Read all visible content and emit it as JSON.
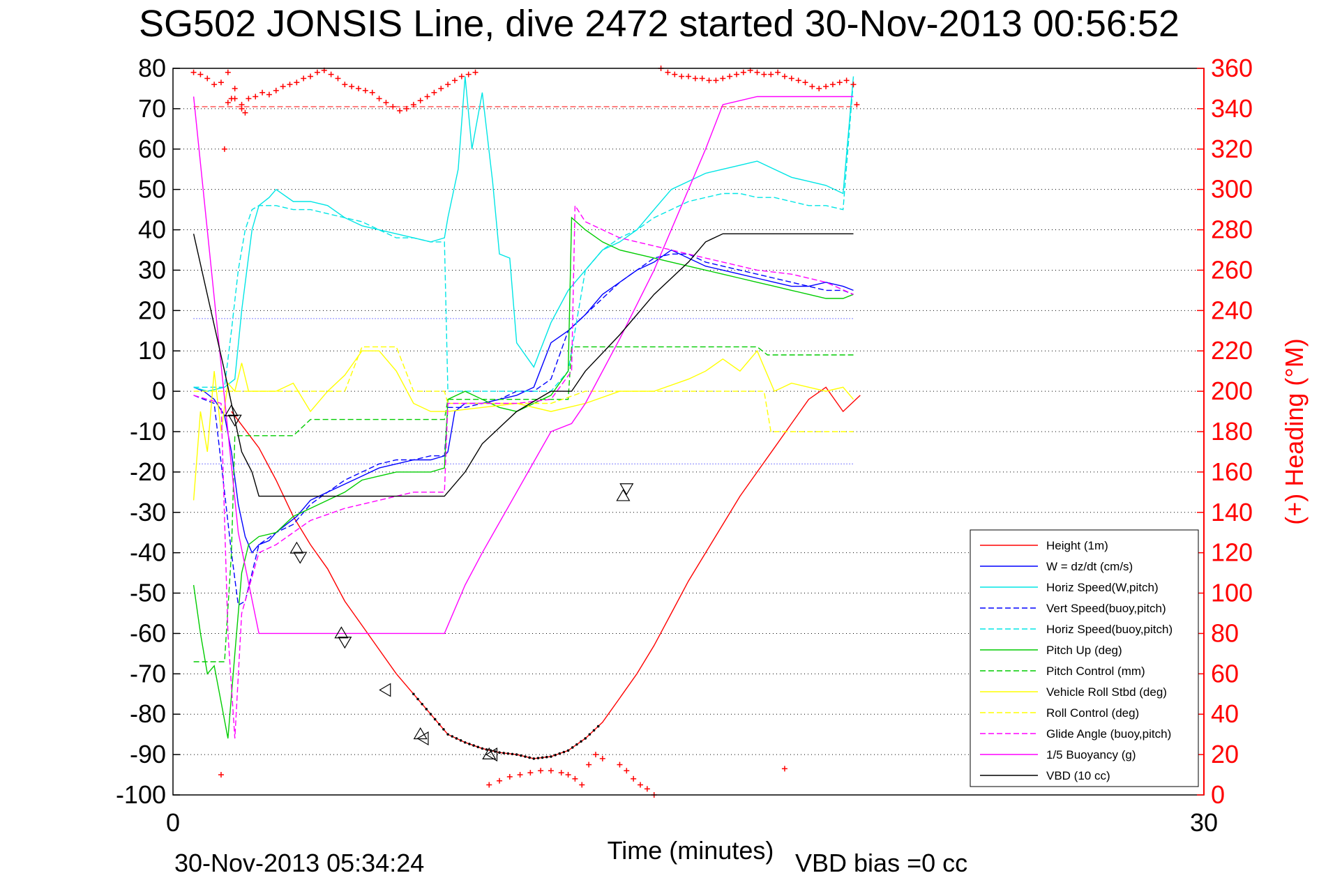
{
  "chart_data": {
    "type": "line",
    "title": "SG502 JONSIS Line, dive 2472 started 30-Nov-2013 00:56:52",
    "xlabel": "Time (minutes)",
    "ylabel": "",
    "y2label": "(+) Heading (°M)",
    "xlim": [
      0,
      30
    ],
    "ylim": [
      -100,
      80
    ],
    "y2lim": [
      0,
      360
    ],
    "x_ticks": [
      "0",
      "30"
    ],
    "y_ticks": [
      "80",
      "70",
      "60",
      "50",
      "40",
      "30",
      "20",
      "10",
      "0",
      "-10",
      "-20",
      "-30",
      "-40",
      "-50",
      "-60",
      "-70",
      "-80",
      "-90",
      "-100"
    ],
    "y2_ticks": [
      "360",
      "340",
      "320",
      "300",
      "280",
      "260",
      "240",
      "220",
      "200",
      "180",
      "160",
      "140",
      "120",
      "100",
      "80",
      "60",
      "40",
      "20",
      "0"
    ],
    "grid": "horizontal dotted",
    "legend_position": "bottom-right",
    "footer_left": "30-Nov-2013 05:34:24",
    "footer_right": "VBD bias =0 cc",
    "reference_lines": [
      {
        "name": "W reference upper",
        "y": 18,
        "color": "#0000ff"
      },
      {
        "name": "W reference lower",
        "y": -18,
        "color": "#0000ff"
      },
      {
        "name": "Heading target",
        "y": 70.5,
        "color": "#ff0000"
      }
    ],
    "series": [
      {
        "name": "Height (1m)",
        "color": "#ff0000",
        "style": "solid",
        "x": [
          1.7,
          2.5,
          3.0,
          3.5,
          4.0,
          4.5,
          5.0,
          5.5,
          6.0,
          6.5,
          7.0,
          7.5,
          8.0,
          8.5,
          9.0,
          9.5,
          10.0,
          10.5,
          11.0,
          11.5,
          12.0,
          12.5,
          13.0,
          13.5,
          14.0,
          14.5,
          15.0,
          15.5,
          16.0,
          16.5,
          17.0,
          17.5,
          18.0,
          18.5,
          19.0,
          19.5,
          20.0
        ],
        "values": [
          -5,
          -14,
          -22,
          -31,
          -38,
          -44,
          -52,
          -58,
          -64,
          -70,
          -75,
          -80,
          -85,
          -87,
          -88.5,
          -89.5,
          -90,
          -91,
          -90.5,
          -89,
          -86,
          -82,
          -76,
          -70,
          -63,
          -55,
          -47,
          -40,
          -33,
          -26,
          -20,
          -14,
          -8,
          -2,
          1,
          -5,
          -1
        ]
      },
      {
        "name": "W = dz/dt (cm/s)",
        "color": "#0000ff",
        "style": "solid",
        "x": [
          0.6,
          0.9,
          1.2,
          1.5,
          1.7,
          1.9,
          2.1,
          2.3,
          2.5,
          2.8,
          3.0,
          3.3,
          3.6,
          4.0,
          4.5,
          5.0,
          5.5,
          6.0,
          6.5,
          7.0,
          7.5,
          7.9,
          8.0,
          8.2,
          8.5,
          9.0,
          9.5,
          10.0,
          10.5,
          11.0,
          11.5,
          12.0,
          12.5,
          13.0,
          13.5,
          14.0,
          14.5,
          15.0,
          15.5,
          16.0,
          16.5,
          17.0,
          17.5,
          18.0,
          18.5,
          19.0,
          19.5,
          19.8
        ],
        "values": [
          1,
          0,
          -2,
          -6,
          -15,
          -28,
          -36,
          -40,
          -38,
          -37,
          -35,
          -33,
          -31,
          -27,
          -25,
          -23,
          -21,
          -19,
          -18,
          -17,
          -17,
          -16,
          -15,
          -5,
          -3,
          -3,
          -2,
          -1,
          1,
          12,
          15,
          19,
          24,
          27,
          30,
          32,
          35,
          33,
          31,
          30,
          29,
          28,
          27,
          26,
          26,
          27,
          26,
          25
        ]
      },
      {
        "name": "Horiz Speed(W,pitch)",
        "color": "#00e5e5",
        "style": "solid",
        "x": [
          0.6,
          1.0,
          1.5,
          1.8,
          2.0,
          2.3,
          2.5,
          2.8,
          3.0,
          3.5,
          4.0,
          4.5,
          5.0,
          5.5,
          6.0,
          6.5,
          7.0,
          7.5,
          7.9,
          8.0,
          8.3,
          8.5,
          8.7,
          9.0,
          9.3,
          9.5,
          9.8,
          10.0,
          10.5,
          11.0,
          11.5,
          12.0,
          12.5,
          13.0,
          13.5,
          14.0,
          14.5,
          15.0,
          15.5,
          16.0,
          16.5,
          17.0,
          17.5,
          18.0,
          18.5,
          19.0,
          19.5,
          19.8
        ],
        "values": [
          1,
          0,
          1,
          3,
          20,
          40,
          46,
          48,
          50,
          47,
          47,
          46,
          43,
          41,
          40,
          39,
          38,
          37,
          38,
          43,
          55,
          78,
          60,
          74,
          52,
          34,
          33,
          12,
          6,
          17,
          25,
          30,
          35,
          37,
          40,
          45,
          50,
          52,
          54,
          55,
          56,
          57,
          55,
          53,
          52,
          51,
          49,
          78
        ]
      },
      {
        "name": "Vert Speed(buoy,pitch)",
        "color": "#0000ff",
        "style": "dashed",
        "x": [
          0.6,
          1.2,
          1.5,
          1.7,
          1.9,
          2.1,
          2.5,
          3.0,
          3.5,
          4.0,
          4.5,
          5.0,
          5.5,
          6.0,
          6.5,
          7.0,
          7.5,
          7.9,
          8.0,
          8.5,
          9.0,
          9.5,
          10.0,
          10.5,
          11.0,
          11.5,
          12.0,
          12.5,
          13.0,
          13.5,
          14.0,
          14.5,
          15.0,
          15.5,
          16.0,
          16.5,
          17.0,
          17.5,
          18.0,
          18.5,
          19.0,
          19.5,
          19.8
        ],
        "values": [
          -1,
          -3,
          -25,
          -40,
          -53,
          -52,
          -38,
          -35,
          -33,
          -28,
          -25,
          -22,
          -20,
          -18,
          -17,
          -17,
          -16,
          -16,
          -4,
          -4,
          -3,
          -2,
          0,
          0,
          3,
          15,
          19,
          23,
          27,
          30,
          33,
          34,
          34,
          32,
          31,
          30,
          29,
          28,
          27,
          26,
          25,
          25,
          24
        ]
      },
      {
        "name": "Horiz Speed(buoy,pitch)",
        "color": "#00e5e5",
        "style": "dashed",
        "x": [
          0.6,
          1.5,
          1.7,
          1.9,
          2.1,
          2.3,
          2.5,
          3.0,
          3.5,
          4.0,
          4.5,
          5.0,
          5.5,
          6.0,
          6.5,
          7.0,
          7.5,
          7.9,
          8.0,
          8.5,
          9.0,
          9.5,
          10.0,
          10.5,
          11.0,
          11.5,
          12.0,
          12.5,
          13.0,
          13.5,
          14.0,
          14.5,
          15.0,
          15.5,
          16.0,
          16.5,
          17.0,
          17.5,
          18.0,
          18.5,
          19.0,
          19.5,
          19.8
        ],
        "values": [
          1,
          1,
          15,
          30,
          40,
          45,
          46,
          46,
          45,
          45,
          44,
          43,
          42,
          40,
          38,
          38,
          37,
          37,
          0,
          0,
          0,
          0,
          0,
          0,
          0,
          5,
          30,
          35,
          38,
          40,
          43,
          45,
          47,
          48,
          49,
          49,
          48,
          48,
          47,
          46,
          46,
          45,
          77
        ]
      },
      {
        "name": "Pitch Up (deg)",
        "color": "#00cc00",
        "style": "solid",
        "x": [
          0.6,
          0.8,
          1.0,
          1.2,
          1.4,
          1.6,
          1.8,
          2.0,
          2.2,
          2.5,
          3.0,
          3.5,
          4.0,
          4.5,
          5.0,
          5.5,
          6.0,
          6.5,
          7.0,
          7.5,
          7.9,
          8.0,
          8.5,
          9.0,
          9.5,
          10.0,
          10.5,
          11.0,
          11.5,
          11.6,
          12.0,
          12.5,
          13.0,
          13.5,
          14.0,
          14.5,
          15.0,
          15.5,
          16.0,
          16.5,
          17.0,
          17.5,
          18.0,
          18.5,
          19.0,
          19.5,
          19.8
        ],
        "values": [
          -48,
          -60,
          -70,
          -68,
          -77,
          -86,
          -65,
          -45,
          -38,
          -36,
          -35,
          -31,
          -29,
          -27,
          -25,
          -22,
          -21,
          -20,
          -20,
          -20,
          -19,
          -2,
          0,
          -2,
          -4,
          -5,
          -3,
          -1,
          5,
          43,
          40,
          37,
          35,
          34,
          33,
          32,
          31,
          30,
          29,
          28,
          27,
          26,
          25,
          24,
          23,
          23,
          24
        ]
      },
      {
        "name": "Pitch Control (mm)",
        "color": "#00cc00",
        "style": "dashed",
        "x": [
          0.6,
          1.5,
          1.7,
          1.8,
          2.5,
          3.0,
          3.5,
          4.0,
          5.0,
          6.0,
          7.0,
          7.9,
          8.0,
          9.0,
          10.0,
          11.0,
          11.5,
          11.6,
          12.0,
          13.0,
          14.0,
          15.0,
          16.0,
          17.0,
          17.3,
          18.0,
          19.0,
          19.8
        ],
        "values": [
          -67,
          -67,
          -40,
          -11,
          -11,
          -11,
          -11,
          -7,
          -7,
          -7,
          -7,
          -7,
          -2,
          -2,
          -2,
          -2,
          -2,
          11,
          11,
          11,
          11,
          11,
          11,
          11,
          9,
          9,
          9,
          9
        ]
      },
      {
        "name": "Vehicle Roll Stbd (deg)",
        "color": "#ffff00",
        "style": "solid",
        "x": [
          0.6,
          0.8,
          1.0,
          1.2,
          1.4,
          1.6,
          1.8,
          2.0,
          2.2,
          2.5,
          3.0,
          3.5,
          4.0,
          4.5,
          5.0,
          5.5,
          6.0,
          6.5,
          7.0,
          7.5,
          7.9,
          8.0,
          9.0,
          10.0,
          11.0,
          12.0,
          13.0,
          14.0,
          15.0,
          15.5,
          16.0,
          16.5,
          17.0,
          17.5,
          18.0,
          18.5,
          19.0,
          19.5,
          19.8
        ],
        "values": [
          -27,
          -5,
          -15,
          5,
          -10,
          2,
          0,
          7,
          0,
          0,
          0,
          2,
          -5,
          0,
          4,
          10,
          10,
          5,
          -3,
          -5,
          -5,
          -5,
          -4,
          -3,
          -5,
          -3,
          0,
          0,
          3,
          5,
          8,
          5,
          10,
          0,
          2,
          1,
          0,
          1,
          -2
        ]
      },
      {
        "name": "Roll Control (deg)",
        "color": "#ffff00",
        "style": "dashed",
        "x": [
          0.6,
          1.5,
          2.0,
          2.5,
          3.0,
          4.0,
          5.0,
          5.5,
          6.0,
          6.5,
          7.0,
          7.9,
          8.0,
          9.0,
          10.0,
          11.0,
          12.0,
          13.0,
          14.0,
          15.0,
          16.0,
          17.0,
          17.2,
          17.4,
          18.0,
          19.0,
          19.8
        ],
        "values": [
          0,
          0,
          0,
          0,
          0,
          0,
          0,
          11,
          11,
          11,
          0,
          0,
          -3,
          -3,
          -3,
          -3,
          0,
          0,
          0,
          0,
          0,
          0,
          0,
          -10,
          -10,
          -10,
          -10
        ]
      },
      {
        "name": "Glide Angle (buoy,pitch)",
        "color": "#ff00ff",
        "style": "dashed",
        "x": [
          0.6,
          1.4,
          1.6,
          1.8,
          2.0,
          2.5,
          3.0,
          3.5,
          4.0,
          5.0,
          6.0,
          7.0,
          7.9,
          8.0,
          9.0,
          10.0,
          11.0,
          11.6,
          11.7,
          12.0,
          13.0,
          14.0,
          15.0,
          16.0,
          17.0,
          18.0,
          19.0,
          19.8
        ],
        "values": [
          -1,
          -3,
          -60,
          -86,
          -55,
          -40,
          -38,
          -35,
          -32,
          -29,
          -27,
          -25,
          -25,
          -3,
          -3,
          -3,
          -2,
          5,
          46,
          42,
          38,
          36,
          34,
          32,
          30,
          29,
          27,
          24
        ]
      },
      {
        "name": "1/5 Buoyancy (g)",
        "color": "#ff00ff",
        "style": "solid",
        "x": [
          0.6,
          1.9,
          2.5,
          7.9,
          8.5,
          9.0,
          10.0,
          11.0,
          11.6,
          12.0,
          13.0,
          14.0,
          15.0,
          15.5,
          16.0,
          17.0,
          18.0,
          19.0,
          19.8
        ],
        "values": [
          73,
          -35,
          -60,
          -60,
          -48,
          -40,
          -25,
          -10,
          -8,
          -3,
          13,
          30,
          50,
          60,
          71,
          73,
          73,
          73,
          73
        ]
      },
      {
        "name": "VBD (10 cc)",
        "color": "#000000",
        "style": "solid",
        "x": [
          0.6,
          1.5,
          2.0,
          2.3,
          2.5,
          3.0,
          7.9,
          8.5,
          9.0,
          10.0,
          11.0,
          11.6,
          12.0,
          13.0,
          14.0,
          15.0,
          15.5,
          16.0,
          17.0,
          18.0,
          19.0,
          19.8
        ],
        "values": [
          39,
          5,
          -15,
          -20,
          -26,
          -26,
          -26,
          -20,
          -13,
          -5,
          0,
          0,
          5,
          14,
          24,
          32,
          37,
          39,
          39,
          39,
          39,
          39
        ]
      }
    ],
    "heading_markers": {
      "name": "Heading (+)",
      "color": "#ff0000",
      "axis": "right",
      "x": [
        0.6,
        0.8,
        1.0,
        1.2,
        1.4,
        1.6,
        1.8,
        2.0,
        2.2,
        2.4,
        2.6,
        2.8,
        3.0,
        3.2,
        3.4,
        3.6,
        3.8,
        4.0,
        4.2,
        4.4,
        4.6,
        4.8,
        5.0,
        5.2,
        5.4,
        5.6,
        5.8,
        6.0,
        6.2,
        6.4,
        6.6,
        6.8,
        7.0,
        7.2,
        7.4,
        7.6,
        7.8,
        8.0,
        8.2,
        8.4,
        8.6,
        8.8,
        1.5,
        1.6,
        1.7,
        1.8,
        2.0,
        2.1,
        1.4,
        9.2,
        9.5,
        9.8,
        10.1,
        10.4,
        10.7,
        11.0,
        11.3,
        11.5,
        11.7,
        11.9,
        12.1,
        12.3,
        12.5,
        13.0,
        13.2,
        13.4,
        13.6,
        13.8,
        14.0,
        14.2,
        14.4,
        14.6,
        14.8,
        15.0,
        15.2,
        15.4,
        15.6,
        15.8,
        16.0,
        16.2,
        16.4,
        16.6,
        16.8,
        17.0,
        17.2,
        17.4,
        17.6,
        17.8,
        18.0,
        18.2,
        18.4,
        18.6,
        18.8,
        19.0,
        19.2,
        19.4,
        19.6,
        19.8,
        19.9,
        17.8
      ],
      "values": [
        358,
        357,
        355,
        352,
        353,
        358,
        350,
        342,
        345,
        346,
        348,
        347,
        349,
        351,
        352,
        353,
        355,
        356,
        358,
        359,
        357,
        355,
        352,
        351,
        350,
        349,
        348,
        345,
        343,
        341,
        339,
        340,
        342,
        344,
        346,
        348,
        350,
        352,
        354,
        356,
        357,
        358,
        320,
        343,
        345,
        345,
        340,
        338,
        10,
        5,
        7,
        9,
        10,
        11,
        12,
        12,
        11,
        10,
        8,
        5,
        15,
        20,
        18,
        15,
        12,
        8,
        5,
        3,
        0,
        360,
        358,
        357,
        356,
        356,
        355,
        355,
        354,
        354,
        355,
        356,
        357,
        358,
        359,
        358,
        357,
        357,
        358,
        356,
        355,
        354,
        353,
        351,
        350,
        351,
        352,
        353,
        354,
        352,
        342,
        13
      ]
    }
  }
}
